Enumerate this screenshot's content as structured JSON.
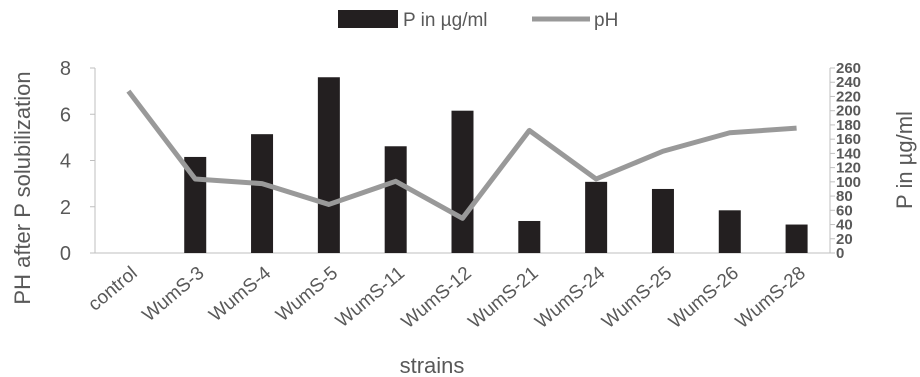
{
  "chart_data": {
    "type": "bar+line",
    "categories": [
      "control",
      "WumS-3",
      "WumS-4",
      "WumS-5",
      "WumS-11",
      "WumS-12",
      "WumS-21",
      "WumS-24",
      "WumS-25",
      "WumS-26",
      "WumS-28"
    ],
    "series": [
      {
        "name": "P in µg/ml",
        "type": "bar",
        "axis": "right",
        "color": "#231f20",
        "values": [
          0,
          135,
          167,
          247,
          150,
          200,
          45,
          100,
          90,
          60,
          40
        ]
      },
      {
        "name": "pH",
        "type": "line",
        "axis": "left",
        "color": "#999999",
        "values": [
          7.0,
          3.2,
          3.0,
          2.1,
          3.1,
          1.5,
          5.3,
          3.2,
          4.4,
          5.2,
          5.4
        ]
      }
    ],
    "xlabel": "strains",
    "ylabel": "PH after  P solubilization",
    "y2label": "P in µg/ml",
    "ylim": [
      0,
      8
    ],
    "y2lim": [
      0,
      260
    ],
    "yticks": [
      0,
      2,
      4,
      6,
      8
    ],
    "y2ticks": [
      0,
      20,
      40,
      60,
      80,
      100,
      120,
      140,
      160,
      180,
      200,
      220,
      240,
      260
    ],
    "legend_position": "top",
    "grid": false
  }
}
